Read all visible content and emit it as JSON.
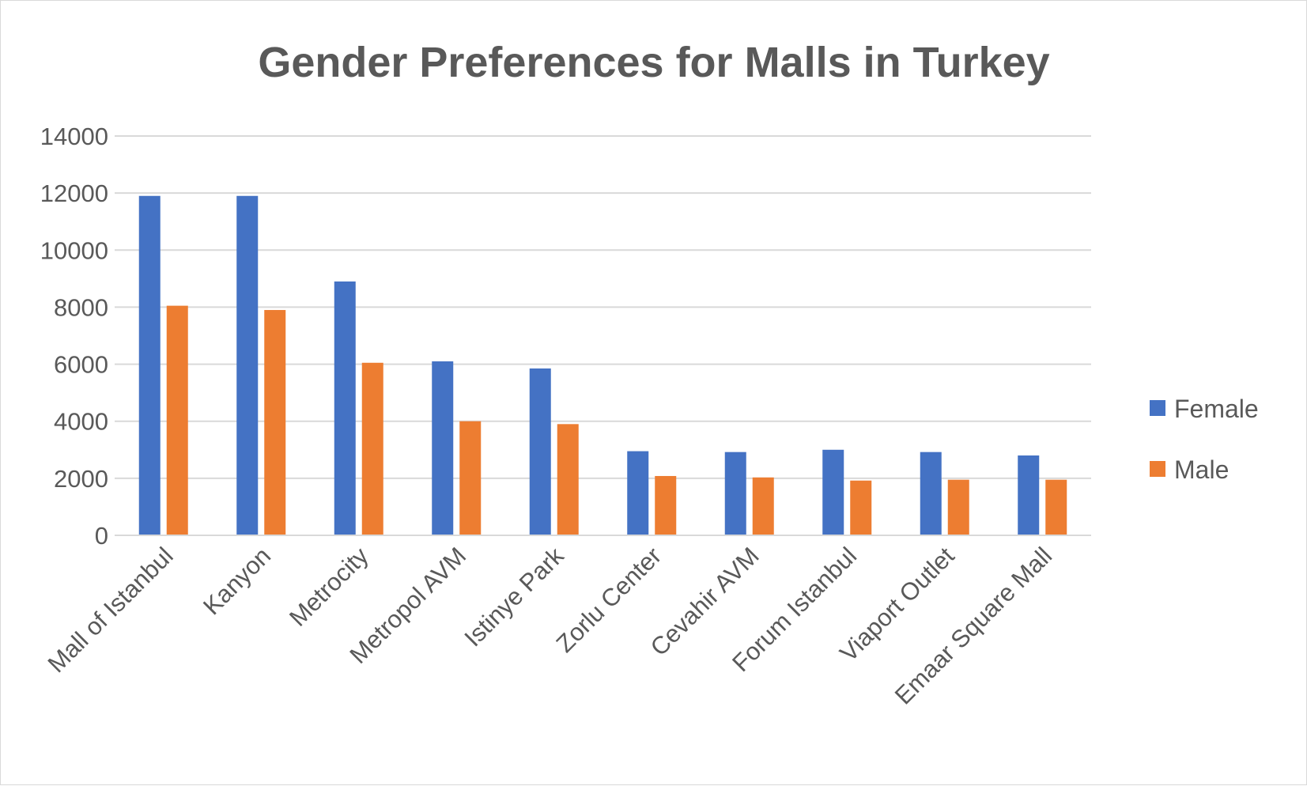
{
  "chart_data": {
    "type": "bar",
    "title": "Gender Preferences for Malls in Turkey",
    "xlabel": "",
    "ylabel": "",
    "ylim": [
      0,
      14000
    ],
    "yticks": [
      "0",
      "2000",
      "4000",
      "6000",
      "8000",
      "10000",
      "12000",
      "14000"
    ],
    "categories": [
      "Mall of Istanbul",
      "Kanyon",
      "Metrocity",
      "Metropol AVM",
      "Istinye Park",
      "Zorlu Center",
      "Cevahir AVM",
      "Forum Istanbul",
      "Viaport Outlet",
      "Emaar Square Mall"
    ],
    "series": [
      {
        "name": "Female",
        "color": "#4472C4",
        "values": [
          11900,
          11900,
          8900,
          6100,
          5850,
          2950,
          2920,
          3000,
          2920,
          2800
        ]
      },
      {
        "name": "Male",
        "color": "#ED7D31",
        "values": [
          8050,
          7900,
          6050,
          4000,
          3900,
          2080,
          2030,
          1920,
          1950,
          1950
        ]
      }
    ],
    "grid": true,
    "legend_position": "right"
  }
}
